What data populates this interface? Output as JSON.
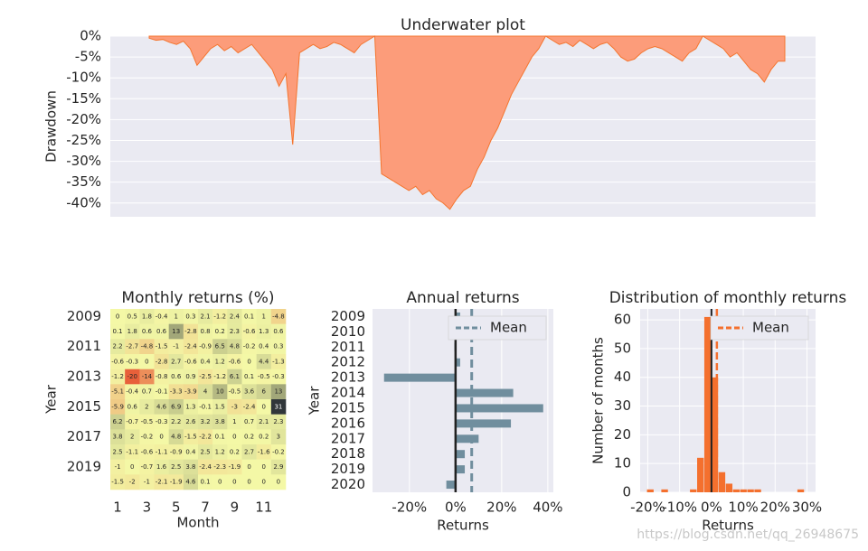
{
  "chart_data": [
    {
      "type": "area",
      "title": "Underwater plot",
      "ylabel": "Drawdown",
      "color": "#fc9c7a",
      "edgecolor": "#f4752f",
      "grid": true,
      "ylim": [
        -43.3,
        0
      ],
      "yticks": [
        {
          "value": 0,
          "label": "0%"
        },
        {
          "value": -5,
          "label": "-5%"
        },
        {
          "value": -10,
          "label": "-10%"
        },
        {
          "value": -15,
          "label": "-15%"
        },
        {
          "value": -20,
          "label": "-20%"
        },
        {
          "value": -25,
          "label": "-25%"
        },
        {
          "value": -30,
          "label": "-30%"
        },
        {
          "value": -35,
          "label": "-35%"
        },
        {
          "value": -40,
          "label": "-40%"
        }
      ],
      "values": [
        -0.5,
        -1,
        -0.8,
        -1.5,
        -2,
        -1.2,
        -3,
        -7,
        -5,
        -3,
        -2,
        -3.5,
        -2.5,
        -4,
        -3,
        -2,
        -4,
        -6,
        -8,
        -12,
        -9,
        -26,
        -4,
        -3,
        -2,
        -3,
        -2.5,
        -1.5,
        -2,
        -3,
        -4,
        -2,
        -1,
        0,
        -33,
        -34,
        -35,
        -36,
        -37,
        -36,
        -38,
        -37,
        -39,
        -40,
        -41.5,
        -39,
        -37,
        -36,
        -32,
        -29,
        -25,
        -22,
        -18,
        -14,
        -11,
        -8,
        -5,
        -3,
        0,
        -1,
        -2,
        -1.5,
        -2.5,
        -1,
        -2,
        -3,
        -2,
        -1.5,
        -3,
        -5,
        -6,
        -5.5,
        -4,
        -3,
        -2.5,
        -3,
        -4,
        -5,
        -6,
        -4,
        -3,
        0,
        -1,
        -2,
        -3,
        -5,
        -4,
        -6,
        -8,
        -9,
        -11,
        -8,
        -6,
        -6
      ]
    },
    {
      "type": "heatmap",
      "title": "Monthly returns (%)",
      "xlabel": "Month",
      "ylabel": "Year",
      "colors": {
        "negative": "#e8603a",
        "zero": "#f4f8a6",
        "positive": "#30363a"
      },
      "categories": [
        1,
        null,
        3,
        null,
        5,
        null,
        7,
        null,
        9,
        null,
        11,
        null
      ],
      "rows": [
        2009,
        null,
        2011,
        null,
        2013,
        null,
        2015,
        null,
        2017,
        null,
        2019,
        null
      ],
      "values": [
        [
          0,
          0.5,
          1.8,
          -0.4,
          1,
          0.3,
          2.1,
          -1.2,
          2.4,
          0.1,
          1,
          -4.8
        ],
        [
          0.1,
          1.8,
          0.6,
          0.6,
          13,
          -2.8,
          0.8,
          0.2,
          2.3,
          -0.6,
          1.3,
          0.6
        ],
        [
          2.2,
          -2.7,
          -4.8,
          -1.5,
          -1,
          -2.4,
          -0.9,
          6.5,
          4.8,
          -0.2,
          0.4,
          0.3
        ],
        [
          -0.6,
          -0.3,
          0,
          -2.8,
          2.7,
          -0.6,
          0.4,
          1.2,
          -0.6,
          0,
          4.4,
          -1.3
        ],
        [
          -1.2,
          -20,
          -14,
          -0.8,
          0.6,
          0.9,
          -2.5,
          -1.2,
          6.1,
          0.1,
          -0.5,
          -0.3
        ],
        [
          -5.1,
          -0.4,
          0.7,
          -0.1,
          -3.3,
          -3.9,
          4,
          10,
          -0.5,
          3.6,
          6,
          13
        ],
        [
          -5.9,
          0.6,
          2,
          4.6,
          6.9,
          1.3,
          -0.1,
          1.5,
          -3,
          -2.4,
          0,
          31
        ],
        [
          6.2,
          -0.7,
          -0.5,
          -0.3,
          2.2,
          2.6,
          3.2,
          3.8,
          1,
          0.7,
          2.1,
          2.3
        ],
        [
          3.8,
          2,
          -0.2,
          0,
          4.8,
          -1.5,
          -2.2,
          0.1,
          0,
          0.2,
          0.2,
          3
        ],
        [
          2.5,
          -1.1,
          -0.6,
          -1.1,
          -0.9,
          0.4,
          2.5,
          1.2,
          0.2,
          2.7,
          -1.6,
          -0.2
        ],
        [
          -1,
          0,
          -0.7,
          1.6,
          2.5,
          3.8,
          -2.4,
          -2.3,
          -1.9,
          0,
          0,
          2.9
        ],
        [
          -1.5,
          -2,
          -1,
          -2.1,
          -1.9,
          4.6,
          0.1,
          0,
          0,
          0,
          0,
          0
        ]
      ]
    },
    {
      "type": "barh",
      "title": "Annual returns",
      "xlabel": "Returns",
      "ylabel": "Year",
      "color": "#708e9e",
      "grid": true,
      "legend": "upper right",
      "mean": 7,
      "mean_label": "Mean",
      "categories": [
        2009,
        2010,
        2011,
        2012,
        2013,
        2014,
        2015,
        2016,
        2017,
        2018,
        2019,
        2020
      ],
      "values": [
        2,
        16,
        -0.5,
        2,
        -31,
        25,
        38,
        24,
        10,
        4,
        4,
        -4
      ],
      "xlim": [
        -36,
        42.4
      ],
      "xticks": [
        {
          "value": -20,
          "label": "-20%"
        },
        {
          "value": 0,
          "label": "0%"
        },
        {
          "value": 20,
          "label": "20%"
        },
        {
          "value": 40,
          "label": "40%"
        }
      ]
    },
    {
      "type": "histogram",
      "title": "Distribution of monthly returns",
      "xlabel": "Returns",
      "ylabel": "Number of months",
      "color": "#f4702e",
      "grid": true,
      "legend": "upper right",
      "mean": 1.7,
      "mean_label": "Mean",
      "bins": [
        -20.25,
        -18,
        -15.75,
        -13.5,
        -11.25,
        -9,
        -6.75,
        -4.5,
        -2.25,
        0,
        2.25,
        4.5,
        6.75,
        9,
        11.25,
        13.5,
        15.75,
        18,
        20.25,
        22.5,
        24.75,
        27,
        29.25
      ],
      "counts": [
        1,
        0,
        1,
        0,
        0,
        0,
        1,
        12,
        61,
        40,
        7,
        3,
        1,
        1,
        1,
        1,
        0,
        0,
        0,
        0,
        0,
        1
      ],
      "xlim": [
        -22.4,
        32.7
      ],
      "ylim": [
        0,
        63.8
      ],
      "xticks": [
        {
          "value": -20,
          "label": "-20%"
        },
        {
          "value": -10,
          "label": "-10%"
        },
        {
          "value": 0,
          "label": "0%"
        },
        {
          "value": 10,
          "label": "10%"
        },
        {
          "value": 20,
          "label": "20%"
        },
        {
          "value": 30,
          "label": "30%"
        }
      ],
      "yticks": [
        0,
        10,
        20,
        30,
        40,
        50,
        60
      ]
    }
  ],
  "watermark": "https://blog.csdn.net/qq_26948675"
}
